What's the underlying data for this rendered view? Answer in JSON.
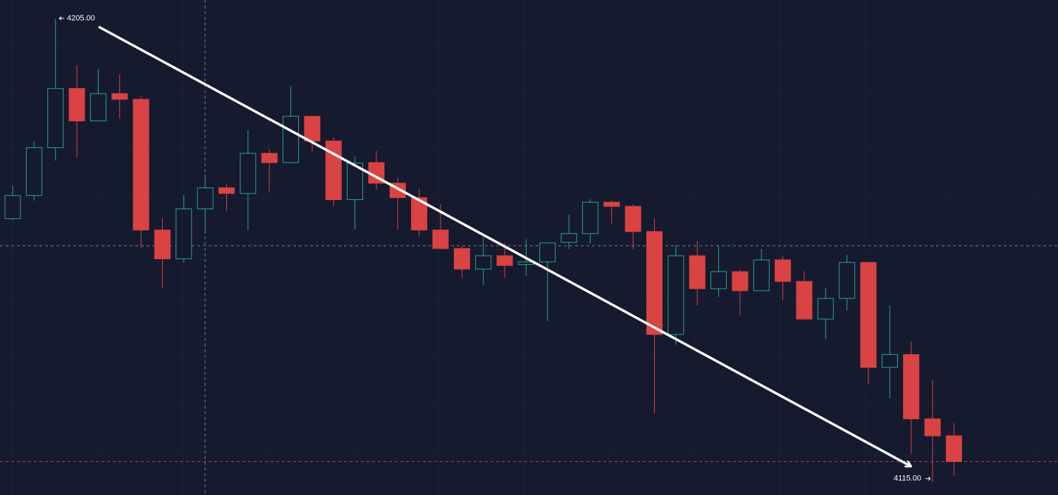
{
  "chart_data": {
    "type": "candlestick",
    "categories": [
      null,
      null,
      null,
      null,
      null,
      null,
      null,
      null,
      null,
      null,
      null,
      null,
      null,
      null,
      null,
      null,
      null,
      null,
      null,
      null,
      null,
      null,
      null,
      null,
      null,
      null,
      null,
      null,
      null,
      null,
      null,
      null,
      null,
      null,
      null,
      null,
      null,
      null,
      null,
      null,
      null,
      null,
      null,
      null,
      null
    ],
    "open": [
      4166.2,
      4170.7,
      4180.0,
      4191.5,
      4185.2,
      4190.5,
      4189.4,
      4164.0,
      4158.4,
      4168.1,
      4172.2,
      4171.1,
      4178.9,
      4177.1,
      4186.1,
      4181.3,
      4169.9,
      4177.1,
      4173.1,
      4170.3,
      4164.0,
      4160.4,
      4156.4,
      4159.0,
      4157.3,
      4157.8,
      4161.6,
      4163.3,
      4169.4,
      4168.6,
      4163.7,
      4143.7,
      4159.0,
      4152.6,
      4155.9,
      4152.2,
      4158.2,
      4154.0,
      4146.7,
      4150.7,
      4157.7,
      4137.3,
      4139.8,
      4127.3,
      4124.0
    ],
    "high": [
      4172.6,
      4181.3,
      4205.0,
      4196.0,
      4195.3,
      4194.3,
      4190.0,
      4166.3,
      4170.8,
      4174.5,
      4172.9,
      4183.4,
      4179.7,
      4192.0,
      4186.1,
      4182.0,
      4178.3,
      4179.4,
      4174.2,
      4172.0,
      4169.0,
      4160.8,
      4162.6,
      4161.5,
      4162.2,
      4161.5,
      4167.0,
      4170.0,
      4169.7,
      4169.0,
      4166.3,
      4161.1,
      4161.9,
      4161.0,
      4156.3,
      4160.3,
      4159.0,
      4156.0,
      4152.8,
      4159.2,
      4157.7,
      4149.3,
      4142.3,
      4134.8,
      4126.5
    ],
    "low": [
      4165.9,
      4169.7,
      4177.5,
      4178.1,
      4185.2,
      4185.7,
      4160.5,
      4152.6,
      4157.7,
      4163.3,
      4167.7,
      4164.0,
      4171.5,
      4177.1,
      4179.1,
      4168.6,
      4164.1,
      4171.9,
      4164.1,
      4162.7,
      4160.4,
      4154.7,
      4153.3,
      4154.7,
      4155.1,
      4146.3,
      4160.3,
      4161.4,
      4165.2,
      4160.3,
      4128.3,
      4141.7,
      4149.3,
      4151.0,
      4147.4,
      4152.2,
      4150.4,
      4146.5,
      4142.8,
      4148.4,
      4134.0,
      4131.3,
      4120.5,
      4115.0,
      4116.2
    ],
    "close": [
      4170.7,
      4180.0,
      4191.5,
      4185.2,
      4190.5,
      4189.4,
      4164.0,
      4158.4,
      4168.1,
      4172.2,
      4171.1,
      4178.9,
      4177.1,
      4186.1,
      4181.3,
      4169.9,
      4177.0,
      4173.1,
      4170.3,
      4164.0,
      4160.4,
      4156.4,
      4159.0,
      4157.1,
      4157.8,
      4161.5,
      4163.3,
      4169.4,
      4168.6,
      4163.7,
      4143.7,
      4159.0,
      4152.6,
      4155.9,
      4152.2,
      4158.2,
      4154.0,
      4146.7,
      4150.7,
      4157.7,
      4137.3,
      4139.8,
      4127.3,
      4124.0,
      4119.0
    ],
    "up_color": "#26a69a",
    "down_color": "#d94343",
    "ylim": [
      4112.5,
      4208.7
    ],
    "annotations": [
      {
        "value": 4205,
        "label": "4205.00"
      },
      {
        "value": 4115,
        "label": "4115.00"
      }
    ]
  }
}
